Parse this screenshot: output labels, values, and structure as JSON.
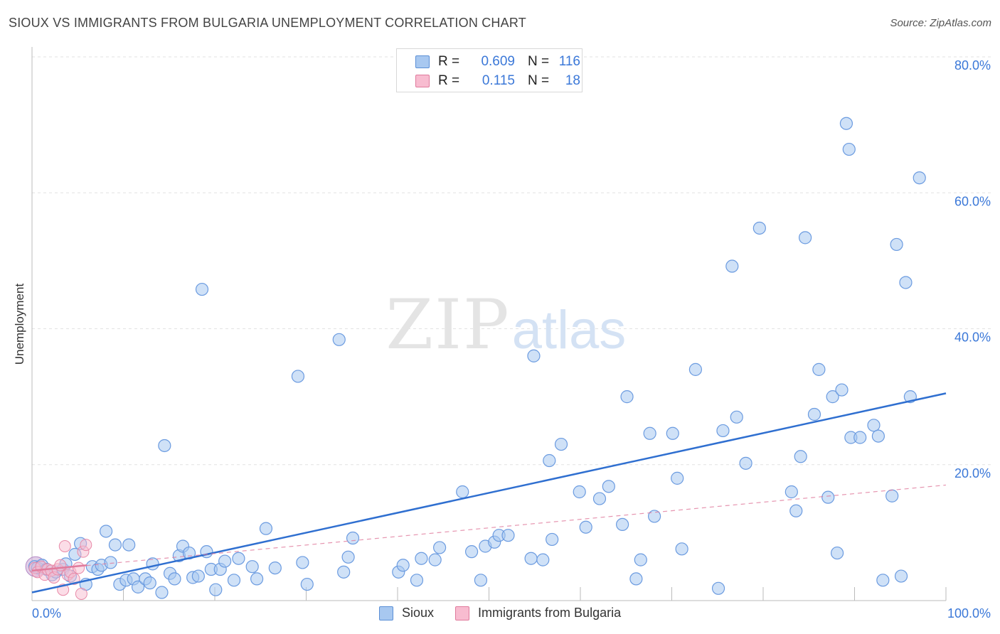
{
  "title": "SIOUX VS IMMIGRANTS FROM BULGARIA UNEMPLOYMENT CORRELATION CHART",
  "source": "Source: ZipAtlas.com",
  "watermark": {
    "zip": "ZIP",
    "atlas": "atlas"
  },
  "legend_top": [
    {
      "r_label": "R =",
      "r_value": "0.609",
      "n_label": "N =",
      "n_value": "116",
      "color": "#a8c8f0",
      "border": "#5b8fd6"
    },
    {
      "r_label": "R =",
      "r_value": "0.115",
      "n_label": "N =",
      "n_value": "18",
      "color": "#f8bcd0",
      "border": "#e07a9c"
    }
  ],
  "legend_bottom": [
    {
      "label": "Sioux",
      "color": "#a8c8f0",
      "border": "#5b8fd6"
    },
    {
      "label": "Immigrants from Bulgaria",
      "color": "#f8bcd0",
      "border": "#e07a9c"
    }
  ],
  "chart_data": {
    "type": "scatter",
    "title": "SIOUX VS IMMIGRANTS FROM BULGARIA UNEMPLOYMENT CORRELATION CHART",
    "xlabel": "",
    "ylabel": "Unemployment",
    "xlim": [
      0,
      100
    ],
    "ylim": [
      0,
      80
    ],
    "x_tick_labels": [
      "0.0%",
      "100.0%"
    ],
    "y_ticks": [
      20,
      40,
      60,
      80
    ],
    "y_tick_labels": [
      "20.0%",
      "40.0%",
      "60.0%",
      "80.0%"
    ],
    "grid": true,
    "series": [
      {
        "name": "Sioux",
        "color": "#a8c8f0",
        "stroke": "#6b9be0",
        "line_color": "#2f6fd0",
        "trend": {
          "x": [
            0,
            100
          ],
          "y": [
            1.2,
            30.5
          ],
          "style": "solid"
        },
        "points": [
          [
            0.3,
            5.0
          ],
          [
            0.6,
            4.8
          ],
          [
            1.1,
            5.2
          ],
          [
            1.6,
            4.6
          ],
          [
            2.2,
            3.8
          ],
          [
            2.6,
            4.2
          ],
          [
            3.4,
            4.6
          ],
          [
            3.7,
            5.4
          ],
          [
            4.2,
            3.6
          ],
          [
            4.7,
            6.8
          ],
          [
            5.3,
            8.4
          ],
          [
            5.9,
            2.4
          ],
          [
            6.6,
            5.0
          ],
          [
            7.2,
            4.6
          ],
          [
            7.6,
            5.2
          ],
          [
            8.1,
            10.2
          ],
          [
            8.6,
            5.6
          ],
          [
            9.1,
            8.2
          ],
          [
            9.6,
            2.4
          ],
          [
            10.3,
            3.0
          ],
          [
            10.6,
            8.2
          ],
          [
            11.1,
            3.2
          ],
          [
            11.6,
            2.0
          ],
          [
            12.4,
            3.2
          ],
          [
            12.9,
            2.6
          ],
          [
            13.2,
            5.4
          ],
          [
            14.2,
            1.2
          ],
          [
            14.5,
            22.8
          ],
          [
            15.1,
            4.0
          ],
          [
            15.6,
            3.2
          ],
          [
            16.1,
            6.6
          ],
          [
            16.5,
            8.0
          ],
          [
            17.2,
            7.0
          ],
          [
            17.6,
            3.4
          ],
          [
            18.2,
            3.6
          ],
          [
            18.6,
            45.8
          ],
          [
            19.1,
            7.2
          ],
          [
            19.6,
            4.6
          ],
          [
            20.1,
            1.6
          ],
          [
            20.6,
            4.6
          ],
          [
            21.1,
            5.8
          ],
          [
            22.1,
            3.0
          ],
          [
            22.6,
            6.2
          ],
          [
            24.1,
            5.0
          ],
          [
            24.6,
            3.2
          ],
          [
            25.6,
            10.6
          ],
          [
            26.6,
            4.8
          ],
          [
            29.1,
            33.0
          ],
          [
            29.6,
            5.6
          ],
          [
            30.1,
            2.4
          ],
          [
            33.6,
            38.4
          ],
          [
            34.1,
            4.2
          ],
          [
            34.6,
            6.4
          ],
          [
            35.1,
            9.2
          ],
          [
            40.1,
            4.2
          ],
          [
            40.6,
            5.2
          ],
          [
            42.1,
            3.0
          ],
          [
            42.6,
            6.2
          ],
          [
            44.1,
            6.0
          ],
          [
            44.6,
            7.8
          ],
          [
            47.1,
            16.0
          ],
          [
            48.1,
            7.2
          ],
          [
            49.1,
            3.0
          ],
          [
            49.6,
            8.0
          ],
          [
            50.6,
            8.6
          ],
          [
            51.1,
            9.6
          ],
          [
            52.1,
            9.6
          ],
          [
            54.6,
            6.2
          ],
          [
            54.9,
            36.0
          ],
          [
            55.9,
            6.0
          ],
          [
            56.6,
            20.6
          ],
          [
            56.9,
            9.0
          ],
          [
            57.9,
            23.0
          ],
          [
            59.9,
            16.0
          ],
          [
            60.6,
            10.8
          ],
          [
            62.1,
            15.0
          ],
          [
            63.1,
            16.8
          ],
          [
            64.6,
            11.2
          ],
          [
            65.1,
            30.0
          ],
          [
            66.1,
            3.2
          ],
          [
            66.6,
            6.0
          ],
          [
            67.6,
            24.6
          ],
          [
            68.1,
            12.4
          ],
          [
            70.1,
            24.6
          ],
          [
            70.6,
            18.0
          ],
          [
            71.1,
            7.6
          ],
          [
            72.6,
            34.0
          ],
          [
            75.1,
            1.8
          ],
          [
            75.6,
            25.0
          ],
          [
            76.6,
            49.2
          ],
          [
            77.1,
            27.0
          ],
          [
            78.1,
            20.2
          ],
          [
            79.6,
            54.8
          ],
          [
            83.1,
            16.0
          ],
          [
            83.6,
            13.2
          ],
          [
            84.1,
            21.2
          ],
          [
            84.6,
            53.4
          ],
          [
            85.6,
            27.4
          ],
          [
            86.1,
            34.0
          ],
          [
            87.1,
            15.2
          ],
          [
            87.6,
            30.0
          ],
          [
            88.1,
            7.0
          ],
          [
            88.6,
            31.0
          ],
          [
            89.1,
            70.2
          ],
          [
            89.4,
            66.4
          ],
          [
            89.6,
            24.0
          ],
          [
            90.6,
            24.0
          ],
          [
            92.1,
            25.8
          ],
          [
            92.6,
            24.2
          ],
          [
            93.1,
            3.0
          ],
          [
            94.1,
            15.4
          ],
          [
            94.6,
            52.4
          ],
          [
            95.1,
            3.6
          ],
          [
            95.6,
            46.8
          ],
          [
            96.1,
            30.0
          ],
          [
            97.1,
            62.2
          ]
        ]
      },
      {
        "name": "Immigrants from Bulgaria",
        "color": "#f8bcd0",
        "stroke": "#e88aa8",
        "line_color": "#e07a9c",
        "trend": {
          "x": [
            0,
            100
          ],
          "y": [
            4.4,
            17.0
          ],
          "style": "dashed"
        },
        "solid_segment": {
          "x": [
            0,
            6
          ],
          "y": [
            4.4,
            5.2
          ]
        },
        "points": [
          [
            0.3,
            4.8
          ],
          [
            0.6,
            4.2
          ],
          [
            1.0,
            5.0
          ],
          [
            1.4,
            3.8
          ],
          [
            1.7,
            4.6
          ],
          [
            2.1,
            4.4
          ],
          [
            2.4,
            3.4
          ],
          [
            2.8,
            4.6
          ],
          [
            3.1,
            5.2
          ],
          [
            3.4,
            1.6
          ],
          [
            3.6,
            8.0
          ],
          [
            3.9,
            3.8
          ],
          [
            4.2,
            4.2
          ],
          [
            4.6,
            3.2
          ],
          [
            5.1,
            4.8
          ],
          [
            5.4,
            1.0
          ],
          [
            5.6,
            7.2
          ],
          [
            5.9,
            8.2
          ]
        ]
      }
    ]
  }
}
